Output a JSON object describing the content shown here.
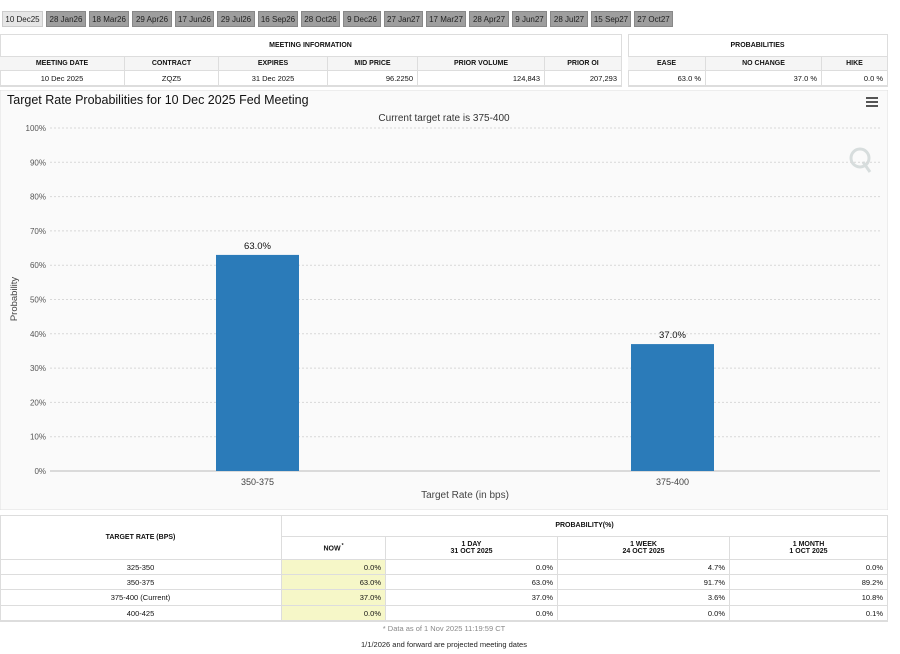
{
  "tabs": [
    "10 Dec25",
    "28 Jan26",
    "18 Mar26",
    "29 Apr26",
    "17 Jun26",
    "29 Jul26",
    "16 Sep26",
    "28 Oct26",
    "9 Dec26",
    "27 Jan27",
    "17 Mar27",
    "28 Apr27",
    "9 Jun27",
    "28 Jul27",
    "15 Sep27",
    "27 Oct27"
  ],
  "meeting_info": {
    "title": "MEETING INFORMATION",
    "headers": [
      "MEETING DATE",
      "CONTRACT",
      "EXPIRES",
      "MID PRICE",
      "PRIOR VOLUME",
      "PRIOR OI"
    ],
    "row": [
      "10 Dec 2025",
      "ZQZ5",
      "31 Dec 2025",
      "96.2250",
      "124,843",
      "207,293"
    ]
  },
  "probabilities": {
    "title": "PROBABILITIES",
    "headers": [
      "EASE",
      "NO CHANGE",
      "HIKE"
    ],
    "row": [
      "63.0 %",
      "37.0 %",
      "0.0 %"
    ]
  },
  "chart_data": {
    "type": "bar",
    "title": "Target Rate Probabilities for 10 Dec 2025 Fed Meeting",
    "subtitle": "Current target rate is 375-400",
    "x_label": "Target Rate (in bps)",
    "y_label": "Probability",
    "categories": [
      "350-375",
      "375-400"
    ],
    "values": [
      63.0,
      37.0
    ],
    "value_labels": [
      "63.0%",
      "37.0%"
    ],
    "color": "#2b7bb9",
    "ylim": [
      0,
      100
    ],
    "yticks": [
      {
        "value": 0,
        "label": "0%"
      },
      {
        "value": 10,
        "label": "10%"
      },
      {
        "value": 20,
        "label": "20%"
      },
      {
        "value": 30,
        "label": "30%"
      },
      {
        "value": 40,
        "label": "40%"
      },
      {
        "value": 50,
        "label": "50%"
      },
      {
        "value": 60,
        "label": "60%"
      },
      {
        "value": 70,
        "label": "70%"
      },
      {
        "value": 80,
        "label": "80%"
      },
      {
        "value": 90,
        "label": "90%"
      },
      {
        "value": 100,
        "label": "100%"
      }
    ],
    "grid": true
  },
  "history_table": {
    "first_header": "TARGET RATE (BPS)",
    "group_header": "PROBABILITY(%)",
    "columns": [
      {
        "label": "NOW",
        "mark": "*"
      },
      {
        "label": "1 DAY",
        "date": "31 OCT 2025"
      },
      {
        "label": "1 WEEK",
        "date": "24 OCT 2025"
      },
      {
        "label": "1 MONTH",
        "date": "1 OCT 2025"
      }
    ],
    "rows": [
      [
        "325-350",
        "0.0%",
        "0.0%",
        "4.7%",
        "0.0%"
      ],
      [
        "350-375",
        "63.0%",
        "63.0%",
        "91.7%",
        "89.2%"
      ],
      [
        "375-400 (Current)",
        "37.0%",
        "37.0%",
        "3.6%",
        "10.8%"
      ],
      [
        "400-425",
        "0.0%",
        "0.0%",
        "0.0%",
        "0.1%"
      ]
    ],
    "footnote": "* Data as of 1 Nov 2025 11:19:59 CT"
  },
  "bottom_note": "1/1/2026 and forward are projected meeting dates"
}
